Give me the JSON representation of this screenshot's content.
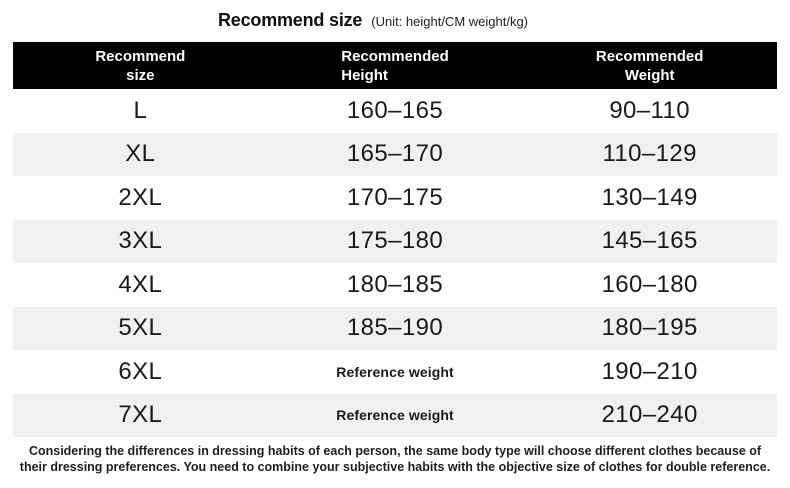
{
  "title": {
    "main": "Recommend size",
    "unit": "(Unit: height/CM weight/kg)"
  },
  "table": {
    "headers": [
      {
        "line1": "Recommend",
        "line2": "size"
      },
      {
        "line1": "Recommended",
        "line2": "Height"
      },
      {
        "line1": "Recommended",
        "line2": "Weight"
      }
    ],
    "rows": [
      {
        "size": "L",
        "height": "160–165",
        "weight": "90–110"
      },
      {
        "size": "XL",
        "height": "165–170",
        "weight": "110–129"
      },
      {
        "size": "2XL",
        "height": "170–175",
        "weight": "130–149"
      },
      {
        "size": "3XL",
        "height": "175–180",
        "weight": "145–165"
      },
      {
        "size": "4XL",
        "height": "180–185",
        "weight": "160–180"
      },
      {
        "size": "5XL",
        "height": "185–190",
        "weight": "180–195"
      },
      {
        "size": "6XL",
        "height": "Reference weight",
        "weight": "190–210"
      },
      {
        "size": "7XL",
        "height": "Reference weight",
        "weight": "210–240"
      }
    ]
  },
  "footer": {
    "line1": "Considering the differences in dressing habits of each person, the same body type will choose different clothes because of",
    "line2": "their dressing preferences. You need to combine your subjective habits with the objective size of clothes for double reference."
  },
  "colors": {
    "header_bg": "#000000",
    "header_text": "#ffffff",
    "row_alt_bg": "#f0f0f0",
    "text": "#1a1a1a",
    "page_bg": "#ffffff"
  },
  "chart_data": {
    "type": "table",
    "title": "Recommend size (Unit: height/CM weight/kg)",
    "columns": [
      "Recommend size",
      "Recommended Height",
      "Recommended Weight"
    ],
    "rows": [
      [
        "L",
        "160–165",
        "90–110"
      ],
      [
        "XL",
        "165–170",
        "110–129"
      ],
      [
        "2XL",
        "170–175",
        "130–149"
      ],
      [
        "3XL",
        "175–180",
        "145–165"
      ],
      [
        "4XL",
        "180–185",
        "160–180"
      ],
      [
        "5XL",
        "185–190",
        "180–195"
      ],
      [
        "6XL",
        "Reference weight",
        "190–210"
      ],
      [
        "7XL",
        "Reference weight",
        "210–240"
      ]
    ],
    "note": "Considering the differences in dressing habits of each person, the same body type will choose different clothes because of their dressing preferences. You need to combine your subjective habits with the objective size of clothes for double reference.",
    "layout": {
      "row_striping": true,
      "stripe_rows": [
        "XL",
        "3XL",
        "5XL",
        "7XL"
      ],
      "header_style": "black-bar-white-text"
    }
  }
}
